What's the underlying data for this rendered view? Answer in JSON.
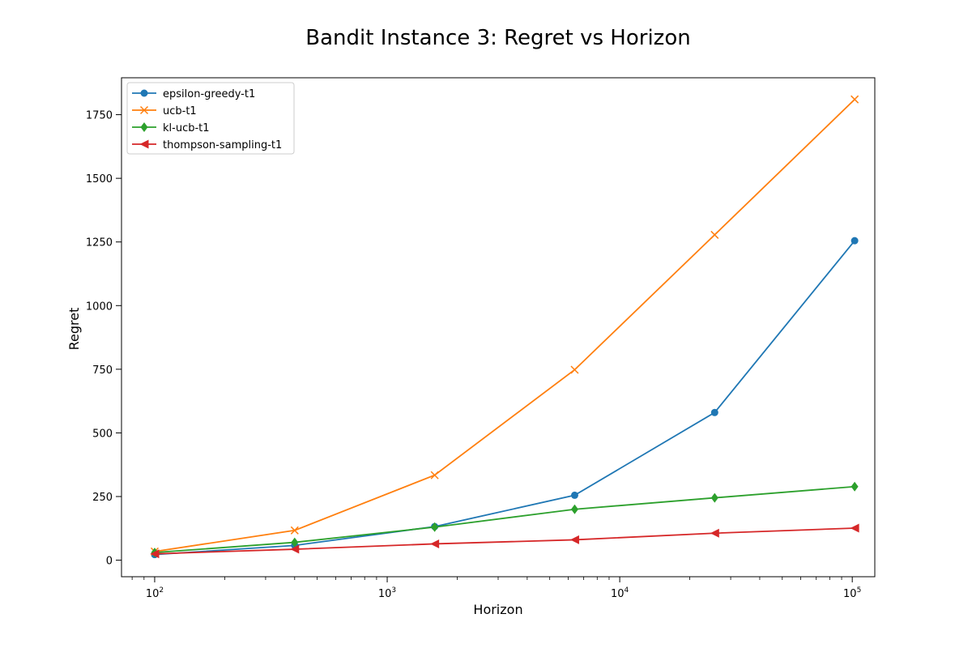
{
  "chart_data": {
    "type": "line",
    "title": "Bandit Instance 3: Regret vs Horizon",
    "xlabel": "Horizon",
    "ylabel": "Regret",
    "xscale": "log",
    "xlim": [
      72,
      125000
    ],
    "ylim": [
      -65,
      1895
    ],
    "x": [
      100,
      400,
      1600,
      6400,
      25600,
      102400
    ],
    "x_ticks": [
      {
        "value": 100,
        "base": "10",
        "exp": "2"
      },
      {
        "value": 1000,
        "base": "10",
        "exp": "3"
      },
      {
        "value": 10000,
        "base": "10",
        "exp": "4"
      },
      {
        "value": 100000,
        "base": "10",
        "exp": "5"
      }
    ],
    "y_ticks": [
      {
        "value": 0,
        "label": "0"
      },
      {
        "value": 250,
        "label": "250"
      },
      {
        "value": 500,
        "label": "500"
      },
      {
        "value": 750,
        "label": "750"
      },
      {
        "value": 1000,
        "label": "1000"
      },
      {
        "value": 1250,
        "label": "1250"
      },
      {
        "value": 1500,
        "label": "1500"
      },
      {
        "value": 1750,
        "label": "1750"
      }
    ],
    "grid": false,
    "legend_position": "top-left",
    "series": [
      {
        "name": "epsilon-greedy-t1",
        "color": "#1f77b4",
        "marker": "circle",
        "values": [
          22,
          58,
          132,
          255,
          580,
          1255
        ]
      },
      {
        "name": "ucb-t1",
        "color": "#ff7f0e",
        "marker": "x",
        "values": [
          34,
          117,
          334,
          748,
          1278,
          1810
        ]
      },
      {
        "name": "kl-ucb-t1",
        "color": "#2ca02c",
        "marker": "diamond",
        "values": [
          30,
          70,
          130,
          200,
          245,
          289
        ]
      },
      {
        "name": "thompson-sampling-t1",
        "color": "#d62728",
        "marker": "triangle-left",
        "values": [
          25,
          43,
          64,
          80,
          106,
          126
        ]
      }
    ]
  }
}
